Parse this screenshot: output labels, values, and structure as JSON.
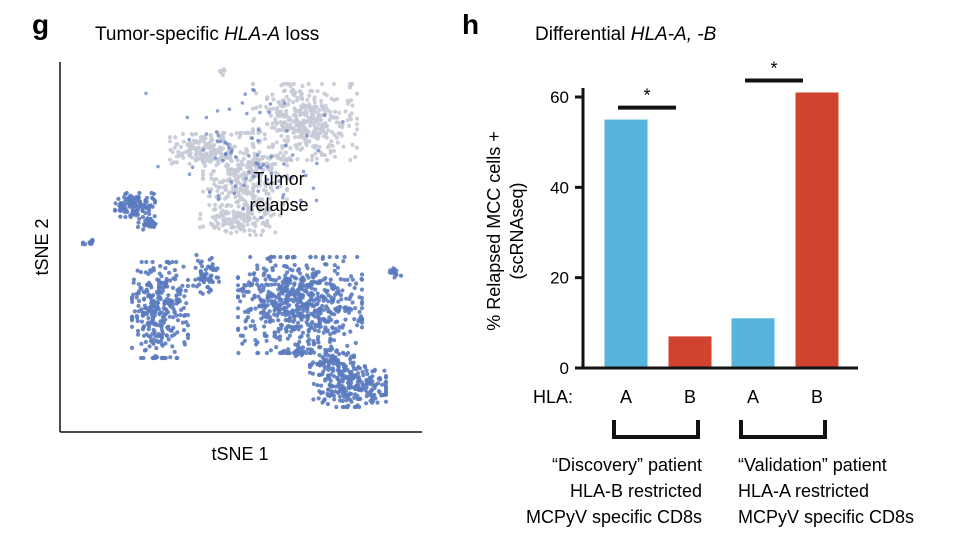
{
  "chart_data": [
    {
      "type": "scatter",
      "panel": "g",
      "title_prefix": "Tumor-specific ",
      "title_gene": "HLA-A",
      "title_suffix": " loss",
      "xlabel": "tSNE 1",
      "ylabel": "tSNE 2",
      "annotation_line1": "Tumor",
      "annotation_line2": "relapse",
      "series_colors": {
        "tumor_relapse": "#c7cad6",
        "other": "#5b7bbf"
      }
    },
    {
      "type": "bar",
      "panel": "h",
      "title_prefix": "Differential ",
      "title_gene": "HLA-A, -B",
      "ylabel_line1": "% Relapsed MCC cells +",
      "ylabel_line2": "(scRNAseq)",
      "ylim": [
        0,
        62
      ],
      "yticks": [
        0,
        20,
        40,
        60
      ],
      "x_prefix": "HLA:",
      "categories": [
        "A",
        "B",
        "A",
        "B"
      ],
      "values": [
        55,
        7,
        11,
        61
      ],
      "bar_colors": [
        "#56b3dc",
        "#d0442f",
        "#56b3dc",
        "#d0442f"
      ],
      "significance": [
        {
          "between": [
            0,
            1
          ],
          "label": "*"
        },
        {
          "between": [
            2,
            3
          ],
          "label": "*"
        }
      ],
      "groups": [
        {
          "bars": [
            0,
            1
          ],
          "lines": [
            "“Discovery” patient",
            "HLA-B restricted",
            "MCPyV specific CD8s"
          ]
        },
        {
          "bars": [
            2,
            3
          ],
          "lines": [
            "“Validation” patient",
            "HLA-A restricted",
            "MCPyV specific CD8s"
          ]
        }
      ]
    }
  ]
}
